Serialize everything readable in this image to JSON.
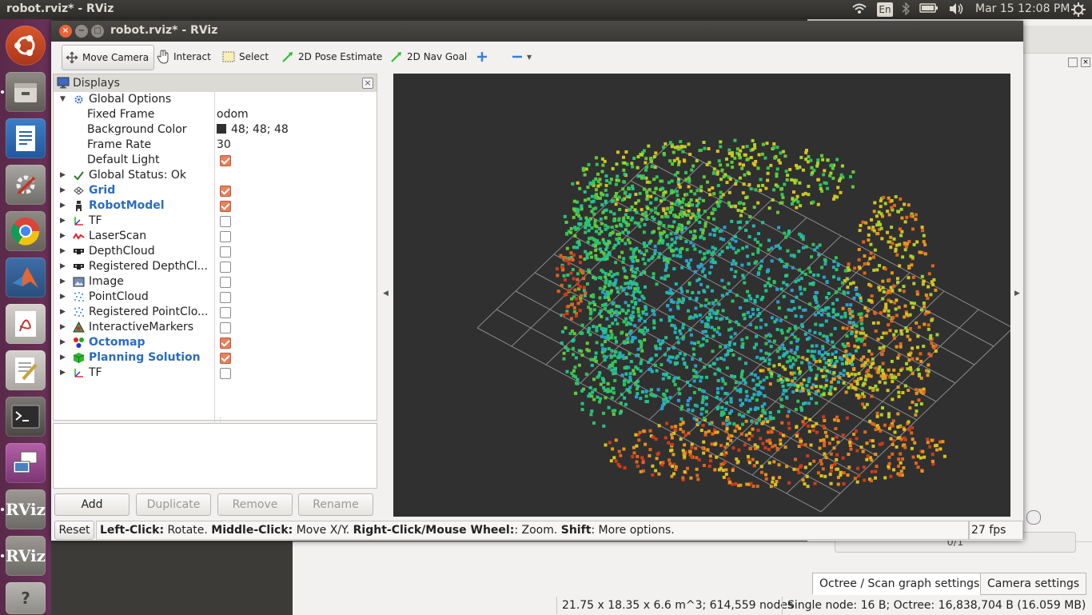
{
  "top_panel": {
    "app_title": "robot.rviz* - RViz",
    "keyboard_layout": "En",
    "datetime": "Mar 15 12:08 PM"
  },
  "launcher": {
    "items": [
      {
        "icon": "ubuntu-dash-icon",
        "label": ""
      },
      {
        "icon": "files-icon",
        "label": ""
      },
      {
        "icon": "writer-icon",
        "label": ""
      },
      {
        "icon": "settings-icon",
        "label": ""
      },
      {
        "icon": "chrome-icon",
        "label": ""
      },
      {
        "icon": "matlab-icon",
        "label": ""
      },
      {
        "icon": "pdf-reader-icon",
        "label": ""
      },
      {
        "icon": "text-editor-icon",
        "label": ""
      },
      {
        "icon": "terminal-icon",
        "label": ""
      },
      {
        "icon": "remote-desktop-icon",
        "label": ""
      },
      {
        "icon": "rviz-icon",
        "label": "RViz"
      },
      {
        "icon": "rviz-icon",
        "label": "RViz"
      },
      {
        "icon": "unknown-app-icon",
        "label": "?"
      }
    ]
  },
  "window": {
    "title": "robot.rviz* - RViz"
  },
  "toolbar": {
    "tools": [
      {
        "label": "Move Camera",
        "icon": "move-camera-icon",
        "active": true
      },
      {
        "label": "Interact",
        "icon": "hand-icon",
        "active": false
      },
      {
        "label": "Select",
        "icon": "select-box-icon",
        "active": false
      },
      {
        "label": "2D Pose Estimate",
        "icon": "pose-arrow-icon",
        "active": false
      },
      {
        "label": "2D Nav Goal",
        "icon": "nav-goal-arrow-icon",
        "active": false
      }
    ],
    "add_tool_icon": "plus-icon",
    "remove_tool_icon": "minus-icon"
  },
  "displays": {
    "title": "Displays",
    "rows": [
      {
        "label": "Global Options",
        "icon": "gear-icon",
        "arrow": "down",
        "indent": 0,
        "checkbox": null,
        "value": ""
      },
      {
        "label": "Fixed Frame",
        "icon": "",
        "arrow": "",
        "indent": 1,
        "checkbox": null,
        "value": "odom"
      },
      {
        "label": "Background Color",
        "icon": "",
        "arrow": "",
        "indent": 1,
        "checkbox": null,
        "value": "48; 48; 48",
        "swatch": "#303030"
      },
      {
        "label": "Frame Rate",
        "icon": "",
        "arrow": "",
        "indent": 1,
        "checkbox": null,
        "value": "30"
      },
      {
        "label": "Default Light",
        "icon": "",
        "arrow": "",
        "indent": 1,
        "checkbox": true,
        "value": ""
      },
      {
        "label": "Global Status: Ok",
        "icon": "checkmark-icon",
        "arrow": "right",
        "indent": 0,
        "checkbox": null,
        "value": ""
      },
      {
        "label": "Grid",
        "icon": "grid-icon",
        "arrow": "right",
        "indent": 0,
        "checkbox": true,
        "value": "",
        "highlight": true
      },
      {
        "label": "RobotModel",
        "icon": "robot-icon",
        "arrow": "right",
        "indent": 0,
        "checkbox": true,
        "value": "",
        "highlight": true
      },
      {
        "label": "TF",
        "icon": "tf-axes-icon",
        "arrow": "right",
        "indent": 0,
        "checkbox": false,
        "value": ""
      },
      {
        "label": "LaserScan",
        "icon": "laserscan-icon",
        "arrow": "right",
        "indent": 0,
        "checkbox": false,
        "value": ""
      },
      {
        "label": "DepthCloud",
        "icon": "depth-camera-icon",
        "arrow": "right",
        "indent": 0,
        "checkbox": false,
        "value": ""
      },
      {
        "label": "Registered DepthCl...",
        "icon": "depth-camera-icon",
        "arrow": "right",
        "indent": 0,
        "checkbox": false,
        "value": ""
      },
      {
        "label": "Image",
        "icon": "image-icon",
        "arrow": "right",
        "indent": 0,
        "checkbox": false,
        "value": ""
      },
      {
        "label": "PointCloud",
        "icon": "pointcloud-icon",
        "arrow": "right",
        "indent": 0,
        "checkbox": false,
        "value": ""
      },
      {
        "label": "Registered PointClo...",
        "icon": "pointcloud-icon",
        "arrow": "right",
        "indent": 0,
        "checkbox": false,
        "value": ""
      },
      {
        "label": "InteractiveMarkers",
        "icon": "interactive-markers-icon",
        "arrow": "right",
        "indent": 0,
        "checkbox": false,
        "value": ""
      },
      {
        "label": "Octomap",
        "icon": "octomap-icon",
        "arrow": "right",
        "indent": 0,
        "checkbox": true,
        "value": "",
        "highlight": true
      },
      {
        "label": "Planning Solution",
        "icon": "planning-cube-icon",
        "arrow": "right",
        "indent": 0,
        "checkbox": true,
        "value": "",
        "highlight": true
      },
      {
        "label": "TF",
        "icon": "tf-axes-icon",
        "arrow": "right",
        "indent": 0,
        "checkbox": false,
        "value": ""
      }
    ],
    "buttons": {
      "add": "Add",
      "duplicate": "Duplicate",
      "remove": "Remove",
      "rename": "Rename"
    }
  },
  "viewport": {
    "background": "#303030"
  },
  "statusbar": {
    "reset": "Reset",
    "hint_parts": [
      {
        "text": "Left-Click:",
        "bold": true
      },
      {
        "text": " Rotate. ",
        "bold": false
      },
      {
        "text": "Middle-Click:",
        "bold": true
      },
      {
        "text": " Move X/Y. ",
        "bold": false
      },
      {
        "text": "Right-Click/Mouse Wheel:",
        "bold": true
      },
      {
        "text": ": Zoom. ",
        "bold": false
      },
      {
        "text": "Shift",
        "bold": true
      },
      {
        "text": ": More options.",
        "bold": false
      }
    ],
    "fps": "27 fps"
  },
  "background_app": {
    "tabs": [
      "Octree / Scan graph settings",
      "Camera settings"
    ],
    "progress_text": "0/1",
    "status_left": "21.75 x 18.35 x 6.6 m^3; 614,559 nodes",
    "status_right": "Single node: 16 B; Octree: 16,838,704 B (16.059 MB)"
  }
}
